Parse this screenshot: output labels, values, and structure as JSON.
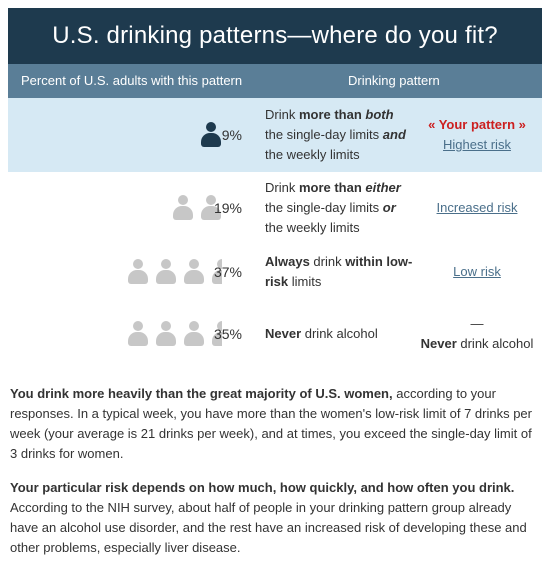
{
  "title": "U.S. drinking patterns—where do you fit?",
  "columns": {
    "percent": "Percent of U.S. adults with this pattern",
    "pattern": "Drinking pattern"
  },
  "rows": [
    {
      "percent": "9%",
      "icons": 1,
      "desc": {
        "pre": "Drink ",
        "bold1": "more than ",
        "ital1": "both",
        "mid": " the single-day limits ",
        "ital2": "and",
        "post": " the weekly limits"
      },
      "your_pattern": "« Your pattern »",
      "risk": "Highest risk"
    },
    {
      "percent": "19%",
      "icons": 2,
      "desc": {
        "pre": "Drink ",
        "bold1": "more than ",
        "ital1": "either",
        "mid": " the single-day limits ",
        "ital2": "or",
        "post": " the weekly limits"
      },
      "risk": "Increased risk"
    },
    {
      "percent": "37%",
      "icons": 3.5,
      "desc": {
        "bold1": "Always",
        "mid": " drink ",
        "bold2": "within low-risk",
        "post": " limits"
      },
      "risk": "Low risk"
    },
    {
      "percent": "35%",
      "icons": 3.5,
      "desc": {
        "bold1": "Never",
        "post": " drink alcohol"
      },
      "risk_dash": "—",
      "risk_bold": "Never",
      "risk_rest": " drink alcohol"
    }
  ],
  "paragraphs": [
    {
      "lead": "You drink more heavily than the great majority of U.S. women,",
      "body": " according to your responses. In a typical week, you have more than the women's low-risk limit of 7 drinks per week (your average is 21 drinks per week), and at times, you exceed the single-day limit of 3 drinks for women."
    },
    {
      "lead": "Your particular risk depends on how much, how quickly, and how often you drink.",
      "body": " According to the NIH survey, about half of people in your drinking pattern group already have an alcohol use disorder, and the rest have an increased risk of developing these and other problems, especially liver disease."
    }
  ],
  "colors": {
    "header": "#1e3a4e",
    "colhead": "#5a7e97",
    "highlight": "#d6e9f4",
    "your_pattern": "#cc1f1f",
    "link": "#4a6f8a"
  }
}
